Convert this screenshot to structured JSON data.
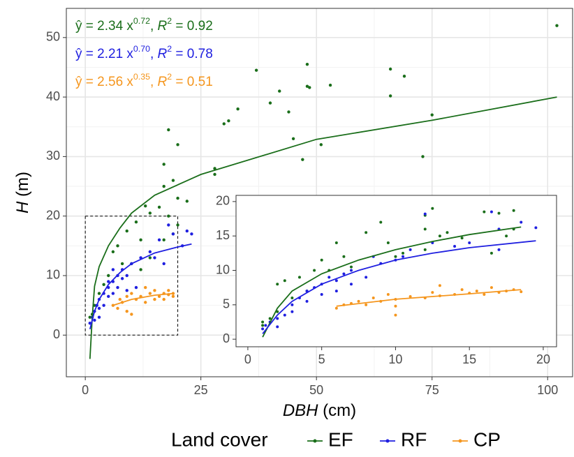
{
  "chart_data": [
    {
      "type": "scatter",
      "x_label": [
        {
          "text": "DBH",
          "italic": true
        },
        {
          "text": " (cm)"
        }
      ],
      "y_label": [
        {
          "text": "H",
          "italic": true
        },
        {
          "text": " (m)"
        }
      ],
      "xlim": [
        -4.1,
        105.4
      ],
      "ylim": [
        -7.0,
        54.9
      ],
      "xticks": [
        0,
        25,
        50,
        75,
        100
      ],
      "yticks": [
        0,
        10,
        20,
        30,
        40,
        50
      ],
      "grid": true,
      "legend": {
        "title": "Land cover",
        "position": "bottom"
      },
      "zoom_box": {
        "xlim": [
          0,
          20
        ],
        "ylim": [
          0,
          20
        ]
      },
      "annotations": [
        {
          "color": "#1a6e1a",
          "segments": [
            {
              "text": "ŷ = 2.34 x"
            },
            {
              "text": "0.72",
              "sup": true
            },
            {
              "text": ", "
            },
            {
              "text": "R",
              "italic": true
            },
            {
              "text": "2",
              "sup": true
            },
            {
              "text": " = 0.92"
            }
          ]
        },
        {
          "color": "#1f1fe0",
          "segments": [
            {
              "text": "ŷ = 2.21 x"
            },
            {
              "text": "0.70",
              "sup": true
            },
            {
              "text": ", "
            },
            {
              "text": "R",
              "italic": true
            },
            {
              "text": "2",
              "sup": true
            },
            {
              "text": " = 0.78"
            }
          ]
        },
        {
          "color": "#f5961e",
          "segments": [
            {
              "text": "ŷ = 2.56 x"
            },
            {
              "text": "0.35",
              "sup": true
            },
            {
              "text": ", "
            },
            {
              "text": "R",
              "italic": true
            },
            {
              "text": "2",
              "sup": true
            },
            {
              "text": " = 0.51"
            }
          ]
        }
      ],
      "series": [
        {
          "name": "EF",
          "color": "#1a6e1a",
          "x": [
            102,
            48,
            37,
            66,
            69,
            42,
            48,
            48.5,
            53,
            66,
            40,
            44,
            33,
            31,
            30,
            45,
            51,
            75,
            73,
            47,
            28,
            28,
            18,
            20,
            17,
            19,
            17,
            20,
            22,
            16,
            13,
            14,
            18,
            20,
            11,
            9,
            12,
            7,
            6,
            8,
            5,
            4,
            3,
            2,
            1.5,
            1,
            19,
            17,
            14,
            10,
            12
          ],
          "values": [
            52,
            45.5,
            44.5,
            44.7,
            43.5,
            41,
            41.8,
            41.6,
            42,
            40.2,
            39,
            37.5,
            38,
            36,
            35.5,
            33,
            32,
            37,
            30,
            29.5,
            28,
            27,
            34.5,
            32,
            28.7,
            26,
            25,
            23,
            22.5,
            21.5,
            21.7,
            20.5,
            20,
            18.5,
            19,
            17.5,
            16,
            15,
            14,
            12,
            10,
            8.5,
            7,
            5,
            3.5,
            3,
            17,
            16,
            13,
            12,
            11
          ],
          "fit": {
            "x": [
              1,
              1.5,
              2,
              3,
              5,
              7.5,
              10,
              15,
              25,
              50,
              75,
              102
            ],
            "values": [
              -4,
              3,
              8.2,
              11.5,
              15,
              18,
              20.5,
              23.5,
              27,
              32.9,
              36.1,
              40
            ]
          }
        },
        {
          "name": "RF",
          "color": "#1f1fe0",
          "x": [
            1,
            1.5,
            2,
            2.5,
            3,
            3,
            4,
            4,
            5,
            5,
            6,
            6,
            7,
            7,
            8,
            8,
            9,
            10,
            12,
            14,
            16,
            18,
            19,
            22,
            23,
            21,
            17,
            15,
            11,
            9,
            3,
            2,
            5,
            6
          ],
          "values": [
            2,
            3,
            4,
            5,
            6,
            4.5,
            7,
            5,
            8,
            6.5,
            9,
            7,
            10,
            8,
            9.5,
            11,
            10,
            12,
            13,
            14,
            16,
            18.5,
            17,
            17.5,
            17,
            15,
            12,
            13,
            8,
            7.5,
            3,
            2.5,
            9,
            11
          ],
          "fit": {
            "x": [
              1,
              2,
              3,
              5,
              7.5,
              10,
              15,
              20,
              23
            ],
            "values": [
              1,
              4,
              6,
              8.5,
              10.5,
              12,
              13.8,
              14.8,
              15.3
            ]
          }
        },
        {
          "name": "CP",
          "color": "#f5961e",
          "x": [
            6,
            7,
            7.5,
            8,
            9,
            9,
            10,
            11,
            12,
            13,
            14,
            15,
            15,
            16,
            17,
            17,
            18,
            18,
            19,
            19,
            13,
            10
          ],
          "values": [
            5,
            4.5,
            6,
            5.5,
            6.5,
            4,
            7,
            6,
            6.5,
            5.5,
            7,
            6,
            7.5,
            6.5,
            7,
            6,
            7.5,
            6.8,
            6.5,
            7,
            8,
            3.5
          ],
          "fit": {
            "x": [
              6,
              10,
              15,
              19
            ],
            "values": [
              5,
              6,
              6.7,
              7
            ]
          }
        }
      ]
    },
    {
      "type": "scatter",
      "xlim": [
        -0.8,
        20.9
      ],
      "ylim": [
        -1.1,
        20.9
      ],
      "xticks": [
        0,
        5,
        10,
        15,
        20
      ],
      "yticks": [
        0,
        5,
        10,
        15,
        20
      ],
      "grid": false,
      "series": [
        {
          "name": "EF",
          "color": "#1a6e1a",
          "x": [
            1,
            1,
            1.5,
            2,
            2,
            2.5,
            3,
            3.5,
            4,
            4.5,
            5,
            5.5,
            6,
            6.5,
            7,
            8,
            9,
            9.5,
            10,
            10.5,
            12,
            12,
            12.5,
            12,
            13,
            13.5,
            16,
            17,
            17.5,
            18,
            18,
            16.5,
            14.5
          ],
          "values": [
            2,
            2.5,
            3,
            4,
            8,
            8.5,
            6,
            9,
            7,
            10,
            11.5,
            10,
            14,
            12,
            10.5,
            15.5,
            17,
            14,
            12,
            12.5,
            16,
            18,
            19,
            13,
            15,
            15.5,
            18.5,
            18.3,
            15,
            18.7,
            16,
            12.5,
            14.7
          ],
          "fit": {
            "x": [
              1,
              2,
              3,
              5,
              7.5,
              10,
              12.5,
              15,
              18.5
            ],
            "values": [
              0.3,
              4.5,
              7,
              9.5,
              11.5,
              13,
              14.2,
              15.2,
              16.3
            ]
          }
        },
        {
          "name": "RF",
          "color": "#1f1fe0",
          "x": [
            1,
            1.2,
            1.5,
            2,
            2,
            2.5,
            3,
            3,
            3.5,
            4,
            4,
            4.5,
            5,
            5,
            5.5,
            6,
            6,
            6.5,
            7,
            7,
            8,
            8.5,
            9,
            10,
            11,
            12,
            12.5,
            15,
            16.5,
            17,
            18.5,
            19.5,
            17,
            14,
            10.5
          ],
          "values": [
            1.5,
            2,
            2.5,
            3,
            1.8,
            3.5,
            4,
            5,
            6,
            7,
            5.5,
            7.5,
            8,
            6.5,
            9,
            8.5,
            7,
            9.5,
            10,
            8,
            9,
            12,
            11,
            11.5,
            13,
            18.2,
            14,
            14,
            18.5,
            16,
            17,
            16.2,
            13,
            13.5,
            12
          ],
          "fit": {
            "x": [
              1,
              2,
              3,
              5,
              7.5,
              10,
              12.5,
              15,
              19.5
            ],
            "values": [
              0.8,
              3.5,
              5.5,
              8,
              10,
              11.5,
              12.5,
              13.3,
              14.3
            ]
          }
        },
        {
          "name": "CP",
          "color": "#f5961e",
          "x": [
            6,
            6.5,
            7,
            7.5,
            8,
            8.5,
            9,
            9.5,
            10,
            10,
            11,
            12,
            12.5,
            13,
            14,
            14.5,
            15,
            15.5,
            16,
            16.5,
            17,
            17.5,
            18,
            18.5,
            13,
            10
          ],
          "values": [
            4.5,
            5,
            5.2,
            5.5,
            5,
            6,
            5.5,
            6.5,
            3.5,
            5.8,
            6.2,
            6,
            6.8,
            6.3,
            6.5,
            7.2,
            6.7,
            7,
            6.5,
            7.5,
            6.8,
            7,
            7.2,
            6.9,
            7.8,
            4.8
          ],
          "fit": {
            "x": [
              6,
              8,
              10,
              12.5,
              15,
              18.5
            ],
            "values": [
              4.8,
              5.3,
              5.8,
              6.2,
              6.6,
              7.2
            ]
          }
        }
      ]
    }
  ]
}
